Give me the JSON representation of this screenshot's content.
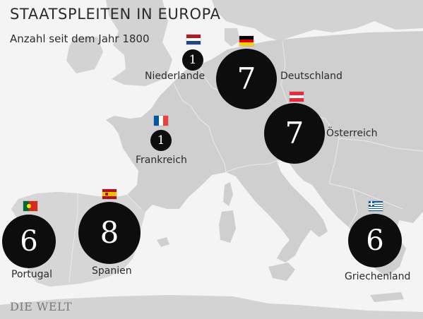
{
  "title": "STAATSPLEITEN IN EUROPA",
  "subtitle": "Anzahl seit dem Jahr 1800",
  "logo": "DIE WELT",
  "colors": {
    "sea": "#f4f4f4",
    "land": "#cfcfcf",
    "land_light": "#dcdcdc",
    "bubble": "#0d0d0d",
    "text": "#2b2b2b"
  },
  "countries": [
    {
      "id": "niederlande",
      "name": "Niederlande",
      "count": "1",
      "flag": "nl-flag-icon"
    },
    {
      "id": "deutschland",
      "name": "Deutschland",
      "count": "7",
      "flag": "de-flag-icon"
    },
    {
      "id": "oesterreich",
      "name": "Österreich",
      "count": "7",
      "flag": "at-flag-icon"
    },
    {
      "id": "frankreich",
      "name": "Frankreich",
      "count": "1",
      "flag": "fr-flag-icon"
    },
    {
      "id": "portugal",
      "name": "Portugal",
      "count": "6",
      "flag": "pt-flag-icon"
    },
    {
      "id": "spanien",
      "name": "Spanien",
      "count": "8",
      "flag": "es-flag-icon"
    },
    {
      "id": "griechenland",
      "name": "Griechenland",
      "count": "6",
      "flag": "gr-flag-icon"
    }
  ]
}
